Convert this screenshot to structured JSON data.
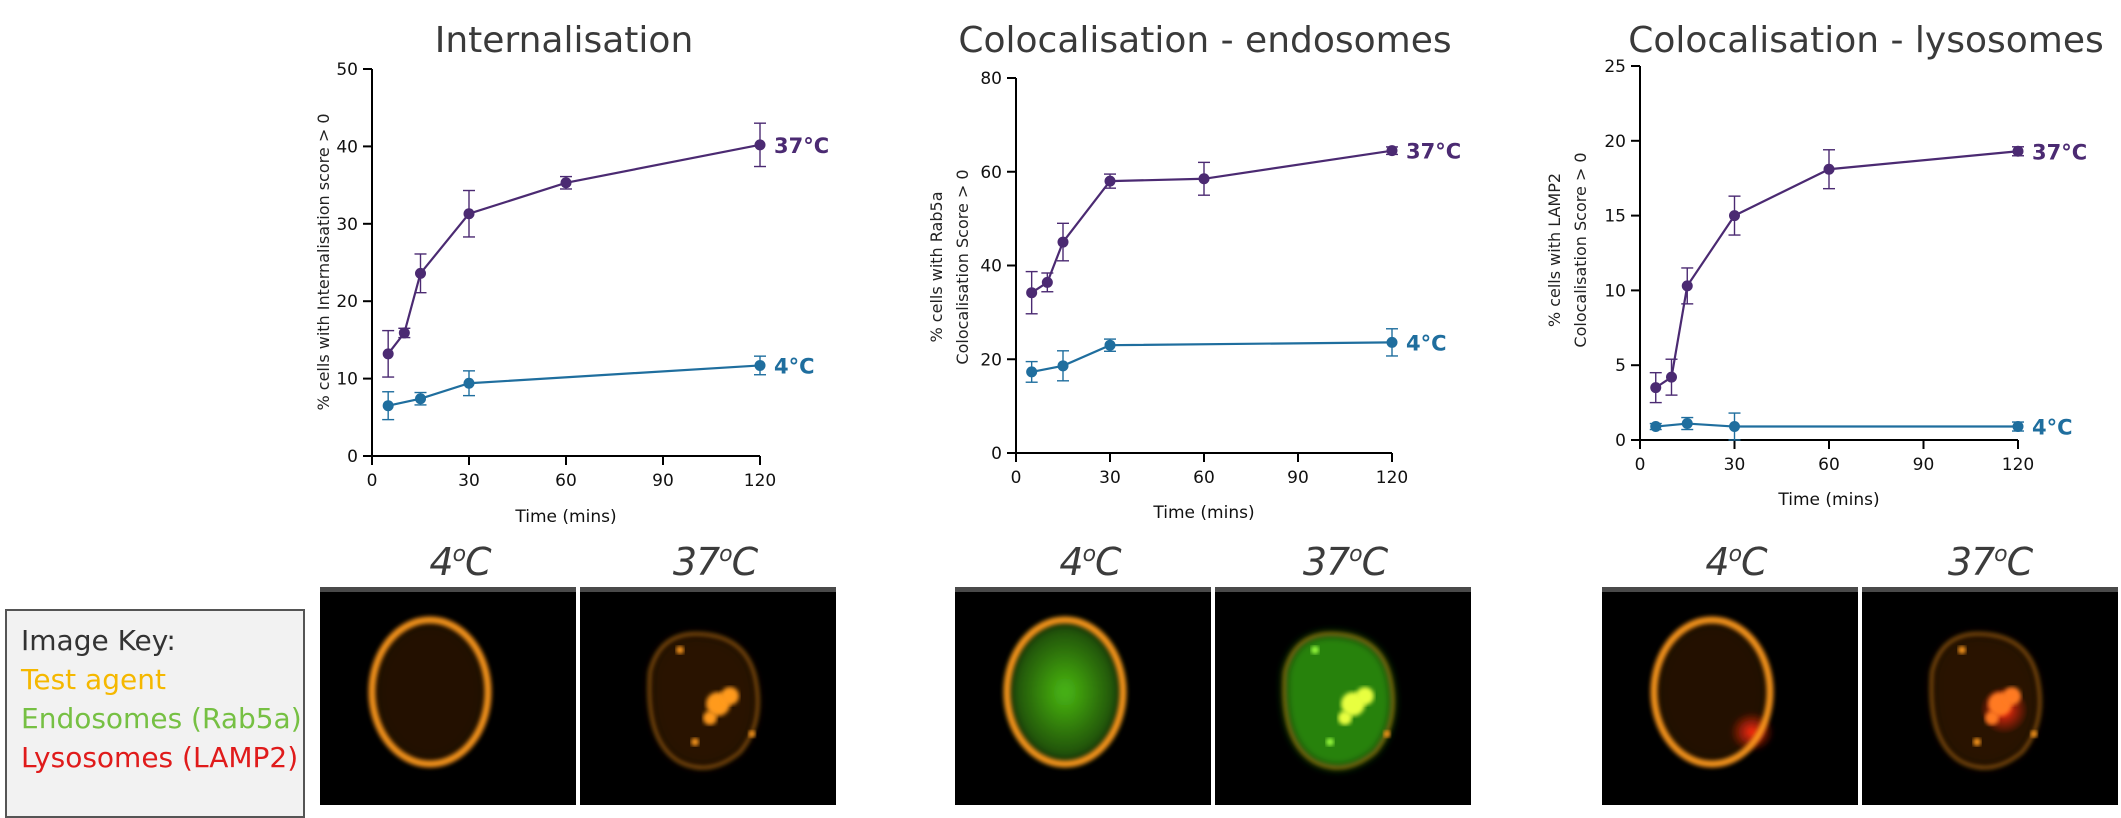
{
  "chart_data": [
    {
      "type": "line",
      "title": "Internalisation",
      "xlabel": "Time (mins)",
      "ylabel": "% cells with Internalisation score > 0",
      "xlim": [
        0,
        120
      ],
      "ylim": [
        0,
        50
      ],
      "xticks": [
        0,
        30,
        60,
        90,
        120
      ],
      "yticks": [
        0,
        10,
        20,
        30,
        40,
        50
      ],
      "series": [
        {
          "name": "37°C",
          "color": "#4b2a72",
          "x": [
            5,
            10,
            15,
            30,
            60,
            120
          ],
          "y": [
            13.2,
            15.9,
            23.6,
            31.3,
            35.3,
            40.2
          ],
          "err": [
            3.0,
            0.6,
            2.5,
            3.0,
            0.8,
            2.8
          ]
        },
        {
          "name": "4°C",
          "color": "#1f6e9e",
          "x": [
            5,
            15,
            30,
            120
          ],
          "y": [
            6.5,
            7.4,
            9.4,
            11.7
          ],
          "err": [
            1.8,
            0.8,
            1.6,
            1.2
          ]
        }
      ]
    },
    {
      "type": "line",
      "title": "Colocalisation - endosomes",
      "xlabel": "Time (mins)",
      "ylabel": [
        "% cells with Rab5a",
        "Colocalisation Score > 0"
      ],
      "xlim": [
        0,
        120
      ],
      "ylim": [
        0,
        80
      ],
      "xticks": [
        0,
        30,
        60,
        90,
        120
      ],
      "yticks": [
        0,
        20,
        40,
        60,
        80
      ],
      "series": [
        {
          "name": "37°C",
          "color": "#4b2a72",
          "x": [
            5,
            10,
            15,
            30,
            60,
            120
          ],
          "y": [
            34.2,
            36.4,
            45.0,
            58.0,
            58.5,
            64.5
          ],
          "err": [
            4.5,
            2.0,
            4.0,
            1.5,
            3.5,
            0.8
          ]
        },
        {
          "name": "4°C",
          "color": "#1f6e9e",
          "x": [
            5,
            15,
            30,
            120
          ],
          "y": [
            17.3,
            18.6,
            23.0,
            23.6
          ],
          "err": [
            2.2,
            3.2,
            1.3,
            2.9
          ]
        }
      ]
    },
    {
      "type": "line",
      "title": "Colocalisation - lysosomes",
      "xlabel": "Time (mins)",
      "ylabel": [
        "% cells with LAMP2",
        "Colocalisation Score > 0"
      ],
      "xlim": [
        0,
        120
      ],
      "ylim": [
        0,
        25
      ],
      "xticks": [
        0,
        30,
        60,
        90,
        120
      ],
      "yticks": [
        0,
        5,
        10,
        15,
        20,
        25
      ],
      "series": [
        {
          "name": "37°C",
          "color": "#4b2a72",
          "x": [
            5,
            10,
            15,
            30,
            60,
            120
          ],
          "y": [
            3.5,
            4.2,
            10.3,
            15.0,
            18.1,
            19.3
          ],
          "err": [
            1.0,
            1.2,
            1.2,
            1.3,
            1.3,
            0.3
          ]
        },
        {
          "name": "4°C",
          "color": "#1f6e9e",
          "x": [
            5,
            15,
            30,
            120
          ],
          "y": [
            0.9,
            1.1,
            0.9,
            0.9
          ],
          "err": [
            0.2,
            0.4,
            0.9,
            0.3
          ]
        }
      ]
    }
  ],
  "micrographs": {
    "labels": [
      {
        "value": "4",
        "sup": "o",
        "unit": "C"
      },
      {
        "value": "37",
        "sup": "o",
        "unit": "C"
      }
    ],
    "colors": {
      "test_agent": "#ff9a1a",
      "endosomes": "#4ec414",
      "lysosomes": "#ff2a10"
    }
  },
  "image_key": {
    "title": "Image Key:",
    "items": [
      {
        "label": "Test agent",
        "color": "#f5b800"
      },
      {
        "label": "Endosomes (Rab5a)",
        "color": "#76c043"
      },
      {
        "label": "Lysosomes (LAMP2)",
        "color": "#e01b1b"
      }
    ]
  }
}
